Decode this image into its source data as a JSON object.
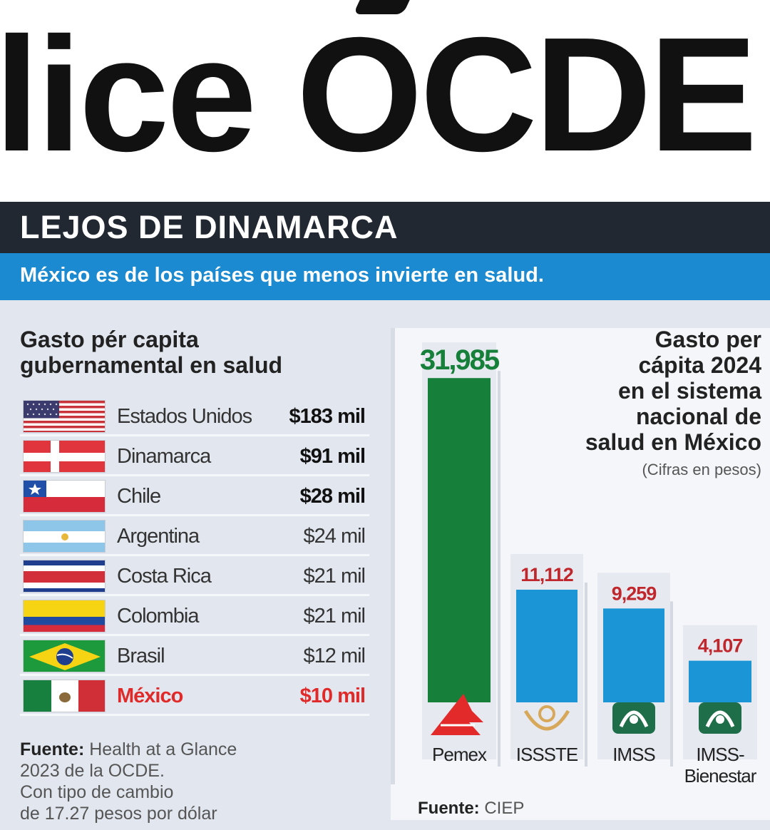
{
  "headline": {
    "text": "lice OCDE"
  },
  "section": {
    "title": "LEJOS DE DINAMARCA",
    "subtitle": "México es de los países que menos invierte en salud."
  },
  "left_panel": {
    "title_line1": "Gasto pér capita",
    "title_line2": "gubernamental en salud",
    "source_label": "Fuente:",
    "source_line1": " Health at a Glance",
    "source_line2": "2023 de la OCDE.",
    "source_line3": "Con tipo de cambio",
    "source_line4": "de 17.27 pesos por dólar"
  },
  "right_panel": {
    "title_line1": "Gasto per",
    "title_line2": "cápita 2024",
    "title_line3": "en el sistema",
    "title_line4": "nacional de",
    "title_line5": "salud en México",
    "note": "(Cifras en pesos)",
    "source_label": "Fuente:",
    "source_text": " CIEP"
  },
  "chart_data": [
    {
      "type": "table",
      "title": "Gasto pér capita gubernamental en salud",
      "rows": [
        {
          "country": "Estados Unidos",
          "value": "$183 mil",
          "bold": true
        },
        {
          "country": "Dinamarca",
          "value": "$91 mil",
          "bold": true
        },
        {
          "country": "Chile",
          "value": "$28 mil",
          "bold": true
        },
        {
          "country": "Argentina",
          "value": "$24 mil",
          "bold": false
        },
        {
          "country": "Costa Rica",
          "value": "$21 mil",
          "bold": false
        },
        {
          "country": "Colombia",
          "value": "$21 mil",
          "bold": false
        },
        {
          "country": "Brasil",
          "value": "$12 mil",
          "bold": false
        },
        {
          "country": "México",
          "value": "$10 mil",
          "bold": true,
          "highlight": true
        }
      ],
      "colors": {
        "highlight": "#e02a2a"
      }
    },
    {
      "type": "bar",
      "title": "Gasto per cápita 2024 en el sistema nacional de salud en México",
      "categories": [
        "Pemex",
        "ISSSTE",
        "IMSS",
        "IMSS-Bienestar"
      ],
      "values": [
        31985,
        11112,
        9259,
        4107
      ],
      "value_labels": [
        "31,985",
        "11,112",
        "9,259",
        "4,107"
      ],
      "ylim": [
        0,
        32000
      ],
      "colors": {
        "bars": [
          "#16803a",
          "#1b95d6",
          "#1b95d6",
          "#1b95d6"
        ],
        "labels": [
          "#16803a",
          "#c0272d",
          "#c0272d",
          "#c0272d"
        ]
      },
      "icons": [
        "pemex-logo-icon",
        "issste-logo-icon",
        "imss-logo-icon",
        "imss-bienestar-logo-icon"
      ]
    }
  ]
}
